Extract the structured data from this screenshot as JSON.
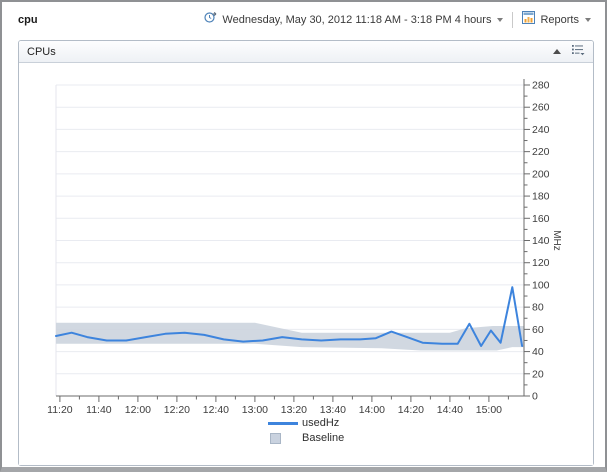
{
  "toolbar": {
    "page_title": "cpu",
    "time_range_label": "Wednesday, May 30, 2012 11:18 AM - 3:18 PM 4 hours",
    "reports_label": "Reports"
  },
  "panel": {
    "title": "CPUs"
  },
  "chart_data": {
    "type": "line",
    "title": "CPUs",
    "xlabel": "",
    "ylabel": "MHz",
    "ylim": [
      0,
      280
    ],
    "y_tick_step": 20,
    "y_minor_step": 10,
    "x_range": [
      "11:18",
      "15:18"
    ],
    "x_tick_step": 20,
    "x_minor_step": 10,
    "x_tick_labels": [
      "11:20",
      "11:40",
      "12:00",
      "12:20",
      "12:40",
      "13:00",
      "13:20",
      "13:40",
      "14:00",
      "14:20",
      "14:40",
      "15:00"
    ],
    "grid": true,
    "legend_position": "bottom",
    "series": [
      {
        "name": "usedHz",
        "type": "line",
        "color": "#3d84dd",
        "points": [
          [
            "11:18",
            54
          ],
          [
            "11:26",
            57
          ],
          [
            "11:34",
            53
          ],
          [
            "11:44",
            50
          ],
          [
            "11:54",
            50
          ],
          [
            "12:04",
            53
          ],
          [
            "12:14",
            56
          ],
          [
            "12:24",
            57
          ],
          [
            "12:34",
            55
          ],
          [
            "12:44",
            51
          ],
          [
            "12:54",
            49
          ],
          [
            "13:04",
            50
          ],
          [
            "13:14",
            53
          ],
          [
            "13:24",
            51
          ],
          [
            "13:34",
            50
          ],
          [
            "13:44",
            51
          ],
          [
            "13:54",
            51
          ],
          [
            "14:02",
            52
          ],
          [
            "14:10",
            58
          ],
          [
            "14:18",
            53
          ],
          [
            "14:26",
            48
          ],
          [
            "14:36",
            47
          ],
          [
            "14:44",
            47
          ],
          [
            "14:50",
            65
          ],
          [
            "14:56",
            45
          ],
          [
            "15:01",
            59
          ],
          [
            "15:06",
            48
          ],
          [
            "15:12",
            98
          ],
          [
            "15:17",
            45
          ]
        ]
      },
      {
        "name": "Baseline",
        "type": "band",
        "color": "#ccd4de",
        "top": [
          [
            "11:18",
            66
          ],
          [
            "13:00",
            66
          ],
          [
            "13:24",
            57
          ],
          [
            "14:40",
            57
          ],
          [
            "14:48",
            61
          ],
          [
            "15:02",
            63
          ],
          [
            "15:18",
            63
          ]
        ],
        "bottom": [
          [
            "11:18",
            47
          ],
          [
            "13:00",
            47
          ],
          [
            "13:24",
            44
          ],
          [
            "14:05",
            43
          ],
          [
            "14:25",
            41
          ],
          [
            "15:04",
            41
          ],
          [
            "15:12",
            44
          ],
          [
            "15:18",
            44
          ]
        ]
      }
    ],
    "legend": [
      {
        "label": "usedHz",
        "swatch": "line",
        "color": "#3d84dd"
      },
      {
        "label": "Baseline",
        "swatch": "area",
        "color": "#c9d2df"
      }
    ]
  }
}
